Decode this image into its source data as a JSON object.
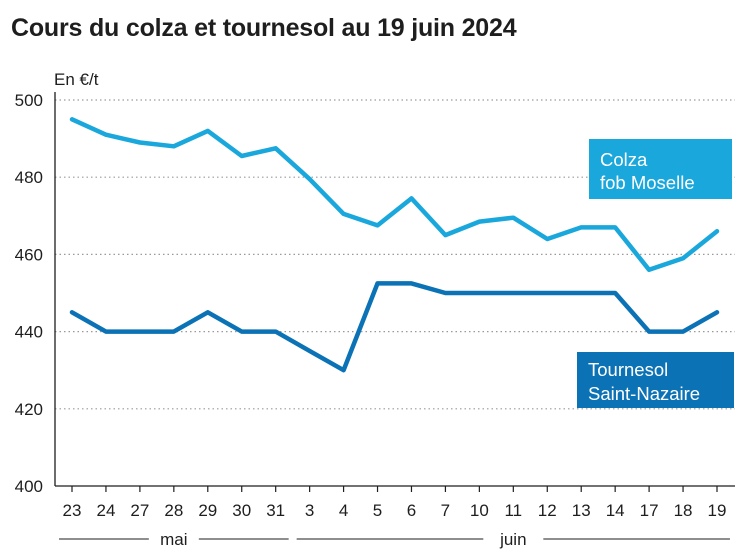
{
  "title": "Cours du colza et tournesol au 19 juin 2024",
  "chart_data": {
    "type": "line",
    "title": "Cours du colza et tournesol au 19 juin 2024",
    "ylabel": "En €/t",
    "xlabel": "",
    "ylim": [
      400,
      500
    ],
    "yticks": [
      400,
      420,
      440,
      460,
      480,
      500
    ],
    "grid": "horizontal dotted",
    "categories": [
      "23",
      "24",
      "27",
      "28",
      "29",
      "30",
      "31",
      "3",
      "4",
      "5",
      "6",
      "7",
      "10",
      "11",
      "12",
      "13",
      "14",
      "17",
      "18",
      "19"
    ],
    "months": [
      {
        "label": "mai",
        "from": "23",
        "to": "31"
      },
      {
        "label": "juin",
        "from": "3",
        "to": "19"
      }
    ],
    "series": [
      {
        "name": "Colza fob Moselle",
        "label_lines": [
          "Colza",
          "fob Moselle"
        ],
        "color": "#1aa7dc",
        "values": [
          495,
          491,
          489,
          488,
          492,
          485.5,
          487.5,
          479.5,
          470.5,
          467.5,
          474.5,
          465,
          468.5,
          469.5,
          464,
          467,
          467,
          456,
          459,
          466
        ]
      },
      {
        "name": "Tournesol Saint-Nazaire",
        "label_lines": [
          "Tournesol",
          "Saint-Nazaire"
        ],
        "color": "#0b72b5",
        "values": [
          445,
          440,
          440,
          440,
          445,
          440,
          440,
          435,
          430,
          452.5,
          452.5,
          450,
          450,
          450,
          450,
          450,
          450,
          440,
          440,
          445
        ]
      }
    ]
  }
}
